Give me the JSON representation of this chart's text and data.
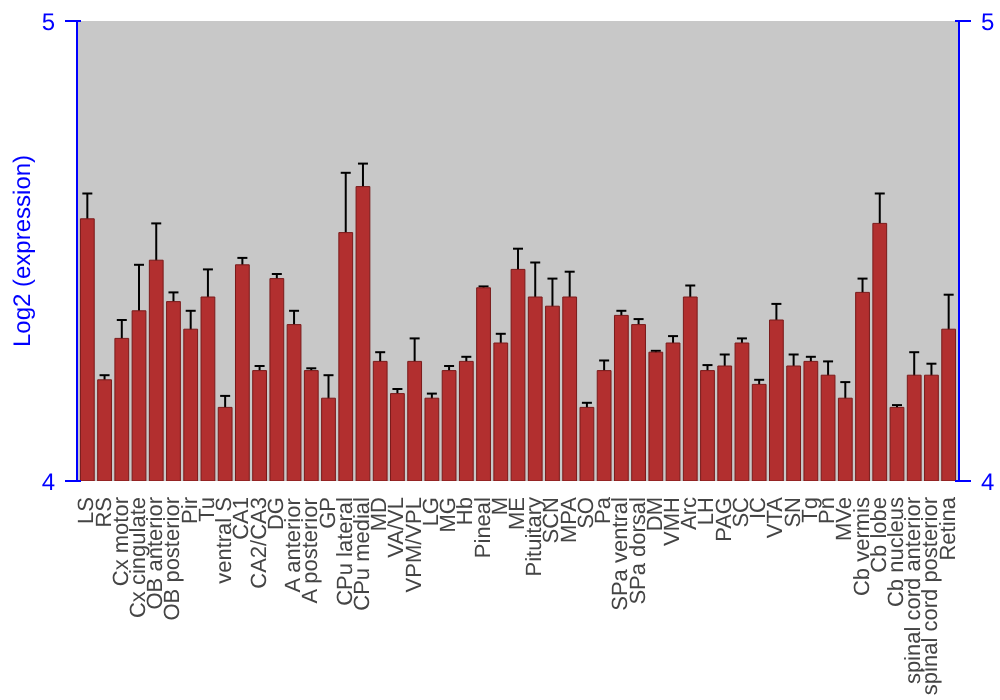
{
  "chart_data": {
    "type": "bar",
    "ylabel": "Log2 (expression)",
    "categories": [
      "LS",
      "RS",
      "Cx motor",
      "Cx cingulate",
      "OB anterior",
      "OB posterior",
      "Pir",
      "Tu",
      "ventral S",
      "CA1",
      "CA2/CA3",
      "DG",
      "A anterior",
      "A posterior",
      "GP",
      "CPu lateral",
      "CPu medial",
      "MD",
      "VA/VL",
      "VPM/VPL",
      "LG",
      "MG",
      "Hb",
      "Pineal",
      "M",
      "ME",
      "Pituitary",
      "SCN",
      "MPA",
      "SO",
      "Pa",
      "SPa ventral",
      "SPa dorsal",
      "DM",
      "VMH",
      "Arc",
      "LH",
      "PAG",
      "SC",
      "IC",
      "VTA",
      "SN",
      "Tg",
      "Pn",
      "MVe",
      "Cb vermis",
      "Cb lobe",
      "Cb nucleus",
      "spinal cord anterior",
      "spinal cord posterior",
      "Retina"
    ],
    "values": [
      4.57,
      4.22,
      4.31,
      4.37,
      4.48,
      4.39,
      4.33,
      4.4,
      4.16,
      4.47,
      4.24,
      4.44,
      4.34,
      4.24,
      4.18,
      4.54,
      4.64,
      4.26,
      4.19,
      4.26,
      4.18,
      4.24,
      4.26,
      4.42,
      4.3,
      4.46,
      4.4,
      4.38,
      4.4,
      4.16,
      4.24,
      4.36,
      4.34,
      4.28,
      4.3,
      4.4,
      4.24,
      4.25,
      4.3,
      4.21,
      4.35,
      4.25,
      4.26,
      4.23,
      4.18,
      4.41,
      4.56,
      4.16,
      4.23,
      4.23,
      4.33
    ],
    "errors": [
      0.055,
      0.01,
      0.04,
      0.1,
      0.08,
      0.02,
      0.04,
      0.06,
      0.025,
      0.015,
      0.01,
      0.01,
      0.03,
      0.005,
      0.05,
      0.13,
      0.05,
      0.02,
      0.01,
      0.05,
      0.01,
      0.01,
      0.01,
      0.003,
      0.02,
      0.045,
      0.075,
      0.06,
      0.055,
      0.01,
      0.022,
      0.01,
      0.012,
      0.003,
      0.015,
      0.025,
      0.012,
      0.025,
      0.01,
      0.01,
      0.035,
      0.025,
      0.01,
      0.03,
      0.035,
      0.03,
      0.065,
      0.005,
      0.05,
      0.025,
      0.075
    ],
    "color": "#b22f2f",
    "ylim": [
      4,
      5
    ],
    "yticks": [
      4,
      5
    ],
    "y2lim": [
      4,
      5
    ],
    "y2ticks": [
      4,
      5
    ],
    "grid": false
  }
}
